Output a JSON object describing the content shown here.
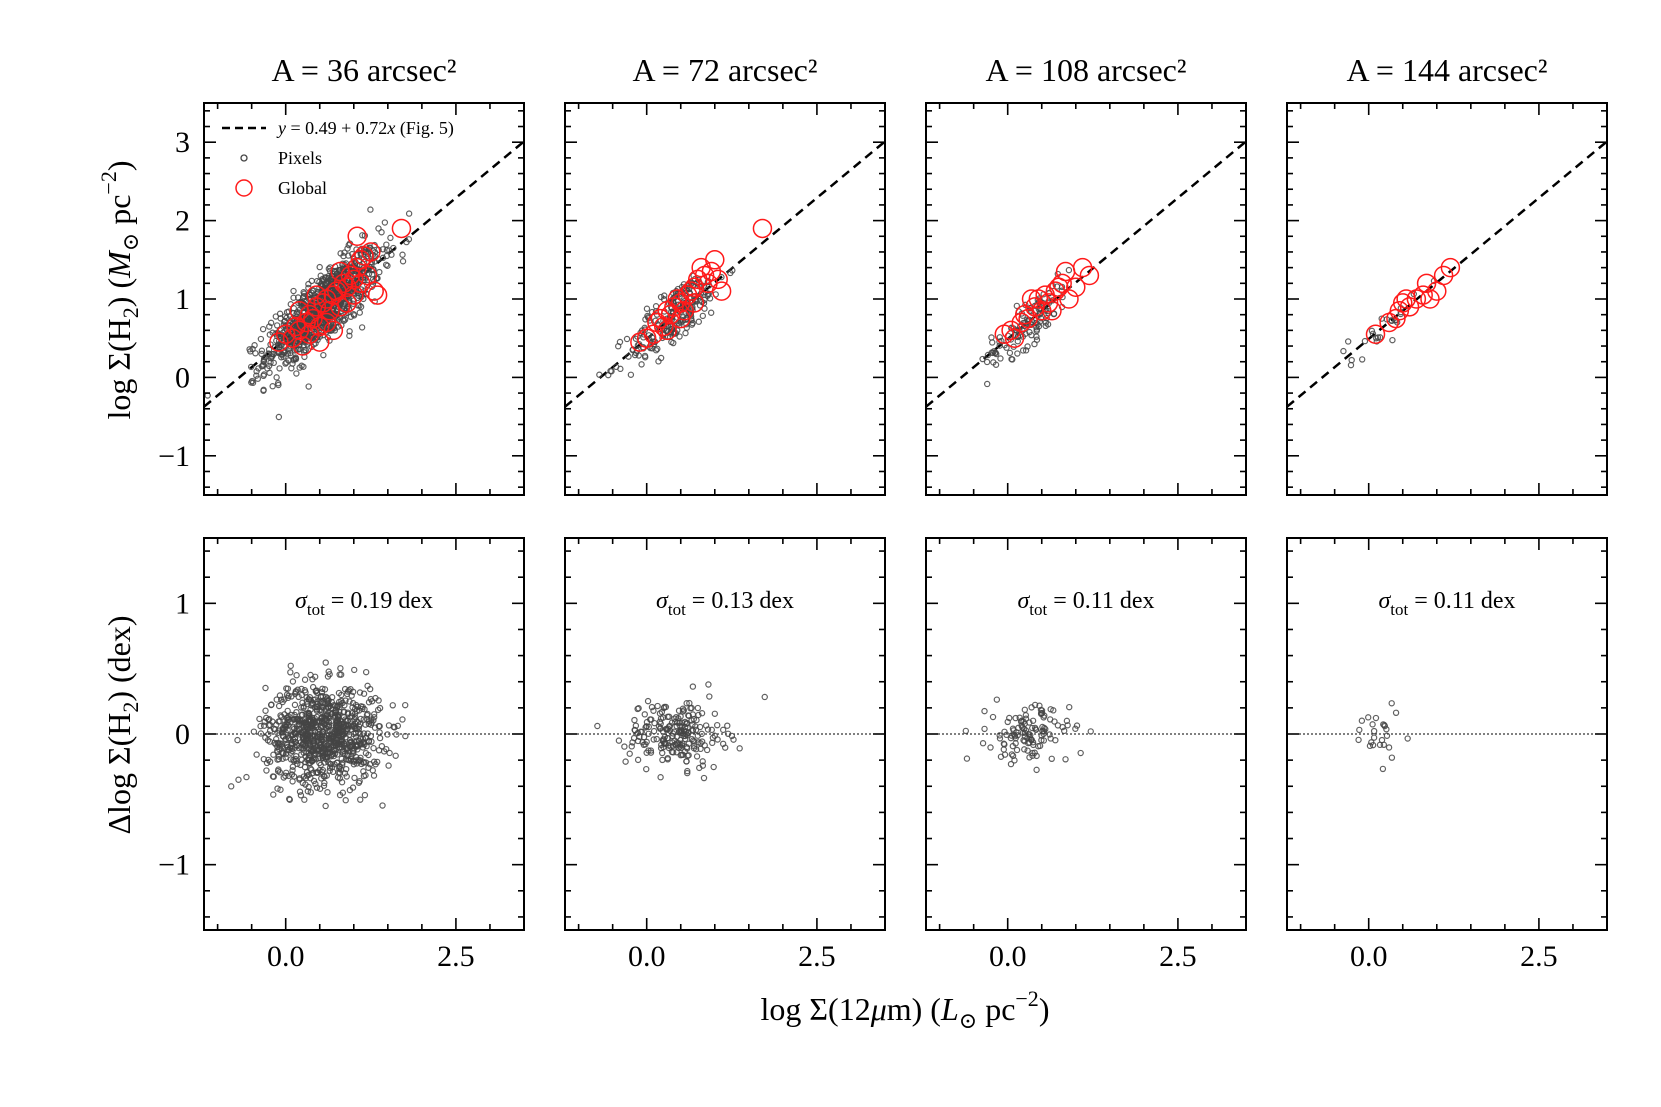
{
  "figure": {
    "ylabel_top": "log Σ(H₂) (M⊙ pc⁻²)",
    "ylabel_bottom": "Δlog Σ(H₂) (dex)",
    "xlabel": "log Σ(12μm) (L⊙ pc⁻²)",
    "colors": {
      "pixels": "#444444",
      "global": "#ff1a1a",
      "fit": "#000000"
    },
    "legend": {
      "placement": "upper-left",
      "fit_label": "y = 0.49 + 0.72x (Fig. 5)",
      "pixels_label": "Pixels",
      "global_label": "Global"
    }
  },
  "chart_data": [
    {
      "type": "scatter",
      "title": "A = 36 arcsec²",
      "xlim": [
        -1.2,
        3.5
      ],
      "ylim": [
        -1.5,
        3.5
      ],
      "xticks": [
        0.0,
        2.5
      ],
      "xtick_labels": [
        "0.0",
        "2.5"
      ],
      "yticks": [
        -1,
        0,
        1,
        2,
        3
      ],
      "ytick_labels": [
        "−1",
        "0",
        "1",
        "2",
        "3"
      ],
      "fit": {
        "intercept": 0.49,
        "slope": 0.72
      },
      "pixel_count": 900,
      "global_points": [
        [
          -0.1,
          0.45
        ],
        [
          0.0,
          0.55
        ],
        [
          0.1,
          0.5
        ],
        [
          0.2,
          0.6
        ],
        [
          0.3,
          0.7
        ],
        [
          0.35,
          0.8
        ],
        [
          0.4,
          0.75
        ],
        [
          0.45,
          0.9
        ],
        [
          0.5,
          0.65
        ],
        [
          0.55,
          0.95
        ],
        [
          0.6,
          1.0
        ],
        [
          0.65,
          0.85
        ],
        [
          0.7,
          1.05
        ],
        [
          0.75,
          1.1
        ],
        [
          0.8,
          0.9
        ],
        [
          0.85,
          1.2
        ],
        [
          0.9,
          1.15
        ],
        [
          0.95,
          1.3
        ],
        [
          1.0,
          1.25
        ],
        [
          1.05,
          1.4
        ],
        [
          1.1,
          1.5
        ],
        [
          1.15,
          1.55
        ],
        [
          1.2,
          1.3
        ],
        [
          1.25,
          1.6
        ],
        [
          1.3,
          1.1
        ],
        [
          1.35,
          1.05
        ],
        [
          1.05,
          1.8
        ],
        [
          1.7,
          1.9
        ],
        [
          0.25,
          0.4
        ],
        [
          0.5,
          0.45
        ],
        [
          0.15,
          0.65
        ],
        [
          0.35,
          0.55
        ],
        [
          0.6,
          0.7
        ],
        [
          0.45,
          1.05
        ],
        [
          0.7,
          0.6
        ],
        [
          0.8,
          1.35
        ],
        [
          0.9,
          0.95
        ],
        [
          1.0,
          1.05
        ],
        [
          1.1,
          1.2
        ],
        [
          0.2,
          0.85
        ]
      ]
    },
    {
      "type": "scatter",
      "title": "A = 72 arcsec²",
      "xlim": [
        -1.2,
        3.5
      ],
      "ylim": [
        -1.5,
        3.5
      ],
      "xticks": [
        0.0,
        2.5
      ],
      "xtick_labels": [
        "0.0",
        "2.5"
      ],
      "yticks": [
        -1,
        0,
        1,
        2,
        3
      ],
      "ytick_labels": [
        "",
        "",
        "",
        "",
        ""
      ],
      "fit": {
        "intercept": 0.49,
        "slope": 0.72
      },
      "pixel_count": 220,
      "global_points": [
        [
          -0.1,
          0.45
        ],
        [
          0.0,
          0.5
        ],
        [
          0.1,
          0.55
        ],
        [
          0.15,
          0.7
        ],
        [
          0.2,
          0.75
        ],
        [
          0.25,
          0.65
        ],
        [
          0.3,
          0.85
        ],
        [
          0.35,
          0.8
        ],
        [
          0.4,
          0.9
        ],
        [
          0.45,
          1.0
        ],
        [
          0.5,
          0.95
        ],
        [
          0.55,
          0.85
        ],
        [
          0.6,
          1.05
        ],
        [
          0.65,
          1.1
        ],
        [
          0.7,
          1.15
        ],
        [
          0.75,
          1.25
        ],
        [
          0.8,
          1.4
        ],
        [
          0.85,
          1.3
        ],
        [
          0.9,
          1.2
        ],
        [
          0.95,
          1.35
        ],
        [
          1.0,
          1.5
        ],
        [
          1.05,
          1.25
        ],
        [
          1.1,
          1.1
        ],
        [
          1.7,
          1.9
        ],
        [
          0.3,
          0.6
        ],
        [
          0.5,
          0.75
        ],
        [
          0.7,
          0.95
        ]
      ]
    },
    {
      "type": "scatter",
      "title": "A = 108 arcsec²",
      "xlim": [
        -1.2,
        3.5
      ],
      "ylim": [
        -1.5,
        3.5
      ],
      "xticks": [
        0.0,
        2.5
      ],
      "xtick_labels": [
        "0.0",
        "2.5"
      ],
      "yticks": [
        -1,
        0,
        1,
        2,
        3
      ],
      "ytick_labels": [
        "",
        "",
        "",
        "",
        ""
      ],
      "fit": {
        "intercept": 0.49,
        "slope": 0.72
      },
      "pixel_count": 120,
      "global_points": [
        [
          -0.05,
          0.55
        ],
        [
          0.05,
          0.6
        ],
        [
          0.1,
          0.5
        ],
        [
          0.2,
          0.7
        ],
        [
          0.25,
          0.8
        ],
        [
          0.3,
          0.75
        ],
        [
          0.4,
          0.9
        ],
        [
          0.45,
          1.0
        ],
        [
          0.5,
          0.85
        ],
        [
          0.55,
          1.05
        ],
        [
          0.6,
          0.95
        ],
        [
          0.7,
          1.1
        ],
        [
          0.75,
          1.15
        ],
        [
          0.8,
          1.2
        ],
        [
          0.85,
          1.35
        ],
        [
          0.9,
          1.0
        ],
        [
          1.0,
          1.15
        ],
        [
          1.1,
          1.4
        ],
        [
          1.2,
          1.3
        ],
        [
          0.35,
          1.0
        ],
        [
          0.65,
          0.85
        ]
      ]
    },
    {
      "type": "scatter",
      "title": "A = 144 arcsec²",
      "xlim": [
        -1.2,
        3.5
      ],
      "ylim": [
        -1.5,
        3.5
      ],
      "xticks": [
        0.0,
        2.5
      ],
      "xtick_labels": [
        "0.0",
        "2.5"
      ],
      "yticks": [
        -1,
        0,
        1,
        2,
        3
      ],
      "ytick_labels": [
        "",
        "",
        "",
        "",
        ""
      ],
      "fit": {
        "intercept": 0.49,
        "slope": 0.72
      },
      "pixel_count": 25,
      "global_points": [
        [
          0.1,
          0.55
        ],
        [
          0.3,
          0.7
        ],
        [
          0.4,
          0.75
        ],
        [
          0.45,
          0.85
        ],
        [
          0.5,
          0.95
        ],
        [
          0.55,
          1.0
        ],
        [
          0.6,
          0.9
        ],
        [
          0.7,
          1.0
        ],
        [
          0.8,
          1.05
        ],
        [
          0.85,
          1.2
        ],
        [
          0.9,
          1.0
        ],
        [
          1.0,
          1.1
        ],
        [
          1.1,
          1.3
        ],
        [
          1.2,
          1.4
        ]
      ]
    },
    {
      "type": "scatter",
      "title": "",
      "xlim": [
        -1.2,
        3.5
      ],
      "ylim": [
        -1.5,
        1.5
      ],
      "xticks": [
        0.0,
        2.5
      ],
      "xtick_labels": [
        "0.0",
        "2.5"
      ],
      "yticks": [
        -1,
        0,
        1
      ],
      "ytick_labels": [
        "−1",
        "0",
        "1"
      ],
      "annotation_symbol": "σ",
      "annotation_sub": "tot",
      "annotation_text": " = 0.19 dex",
      "residual_count": 900,
      "residual_sigma": 0.19,
      "zero_line": 0
    },
    {
      "type": "scatter",
      "title": "",
      "xlim": [
        -1.2,
        3.5
      ],
      "ylim": [
        -1.5,
        1.5
      ],
      "xticks": [
        0.0,
        2.5
      ],
      "xtick_labels": [
        "0.0",
        "2.5"
      ],
      "yticks": [
        -1,
        0,
        1
      ],
      "ytick_labels": [
        "",
        "",
        ""
      ],
      "annotation_symbol": "σ",
      "annotation_sub": "tot",
      "annotation_text": " = 0.13 dex",
      "residual_count": 220,
      "residual_sigma": 0.13,
      "zero_line": 0
    },
    {
      "type": "scatter",
      "title": "",
      "xlim": [
        -1.2,
        3.5
      ],
      "ylim": [
        -1.5,
        1.5
      ],
      "xticks": [
        0.0,
        2.5
      ],
      "xtick_labels": [
        "0.0",
        "2.5"
      ],
      "yticks": [
        -1,
        0,
        1
      ],
      "ytick_labels": [
        "",
        "",
        ""
      ],
      "annotation_symbol": "σ",
      "annotation_sub": "tot",
      "annotation_text": " = 0.11 dex",
      "residual_count": 120,
      "residual_sigma": 0.11,
      "zero_line": 0
    },
    {
      "type": "scatter",
      "title": "",
      "xlim": [
        -1.2,
        3.5
      ],
      "ylim": [
        -1.5,
        1.5
      ],
      "xticks": [
        0.0,
        2.5
      ],
      "xtick_labels": [
        "0.0",
        "2.5"
      ],
      "yticks": [
        -1,
        0,
        1
      ],
      "ytick_labels": [
        "",
        "",
        ""
      ],
      "annotation_symbol": "σ",
      "annotation_sub": "tot",
      "annotation_text": " = 0.11 dex",
      "residual_count": 25,
      "residual_sigma": 0.11,
      "zero_line": 0
    }
  ]
}
